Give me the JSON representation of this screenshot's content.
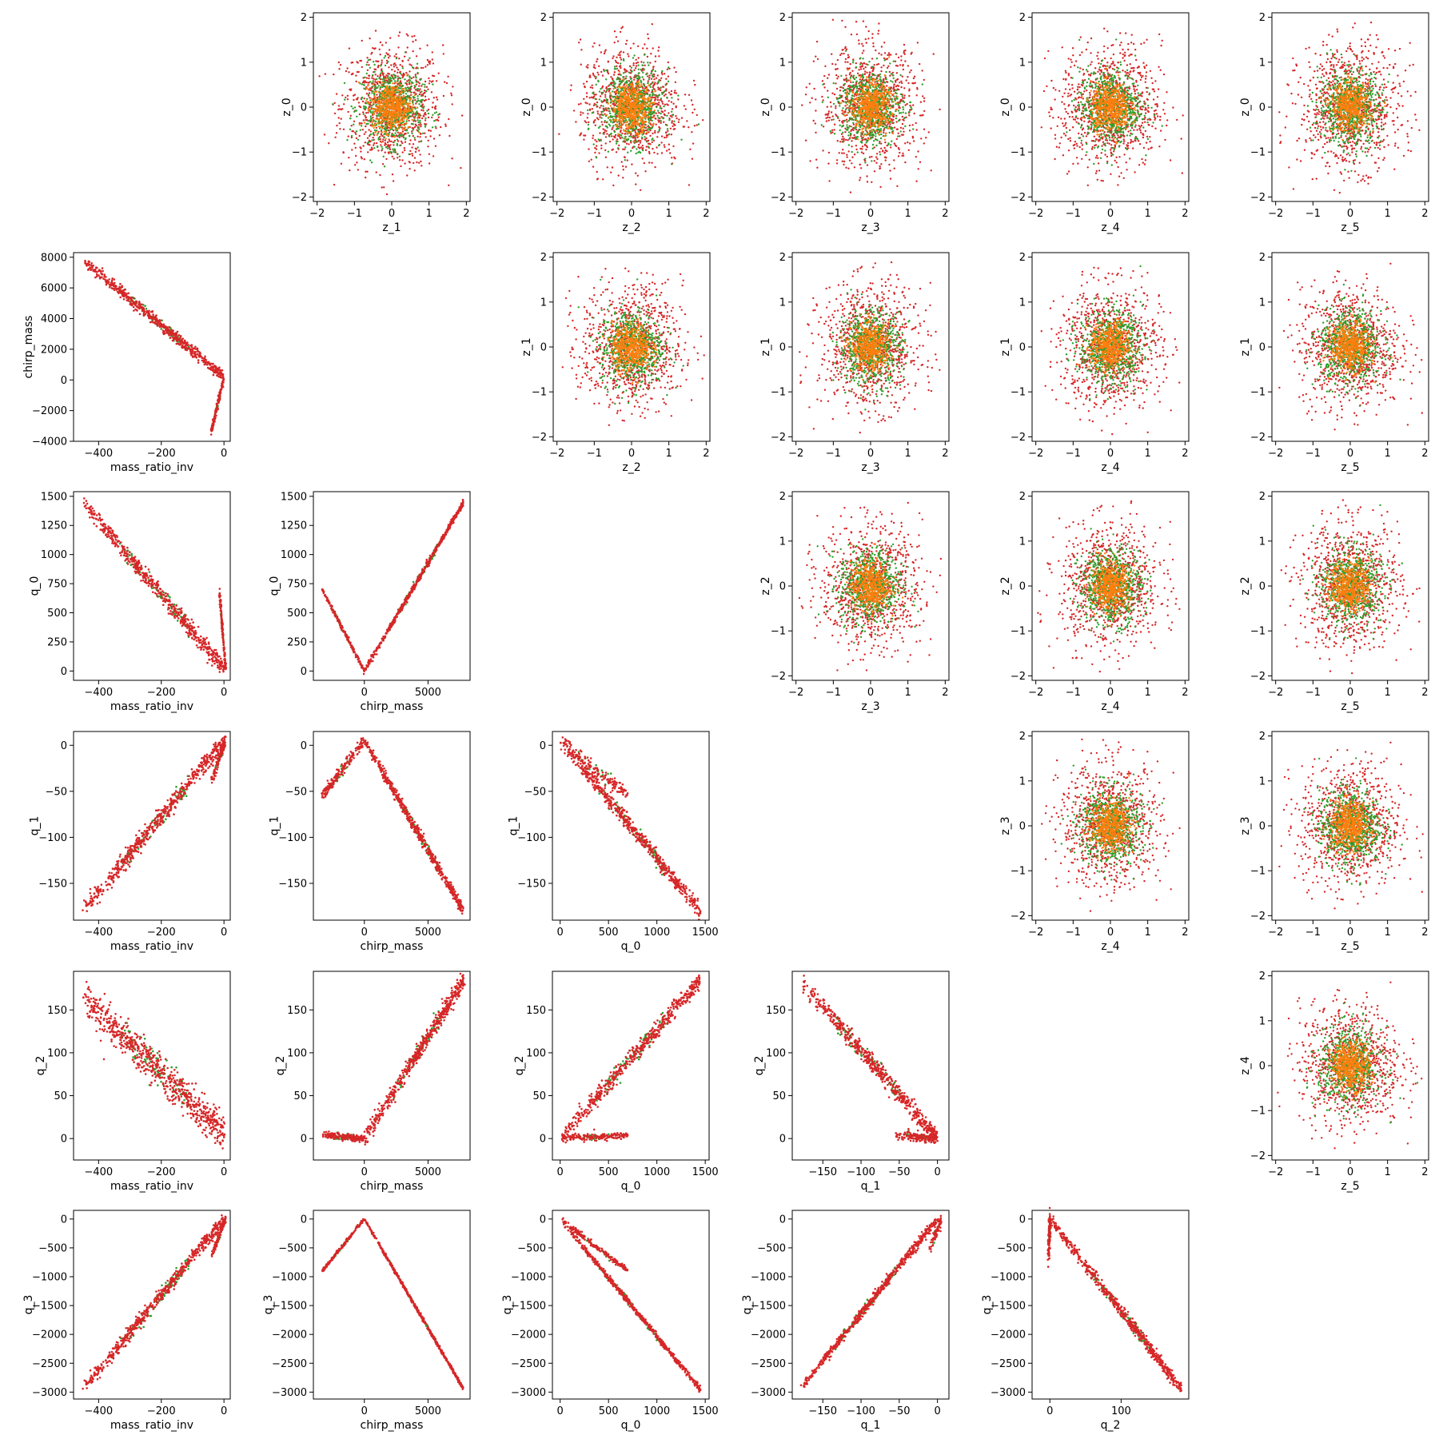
{
  "chart_data": {
    "type": "scatter",
    "grid": false,
    "colors": {
      "red": "#d62728",
      "green": "#2ca02c",
      "orange": "#ff7f0e"
    },
    "variables": {
      "z_0": {
        "label": "z_0",
        "ticks": [
          -2,
          -1,
          0,
          1,
          2
        ],
        "range": [
          -2.1,
          2.1
        ]
      },
      "z_1": {
        "label": "z_1",
        "ticks": [
          -2,
          -1,
          0,
          1,
          2
        ],
        "range": [
          -2.1,
          2.1
        ]
      },
      "z_2": {
        "label": "z_2",
        "ticks": [
          -2,
          -1,
          0,
          1,
          2
        ],
        "range": [
          -2.1,
          2.1
        ]
      },
      "z_3": {
        "label": "z_3",
        "ticks": [
          -2,
          -1,
          0,
          1,
          2
        ],
        "range": [
          -2.1,
          2.1
        ]
      },
      "z_4": {
        "label": "z_4",
        "ticks": [
          -2,
          -1,
          0,
          1,
          2
        ],
        "range": [
          -2.1,
          2.1
        ]
      },
      "z_5": {
        "label": "z_5",
        "ticks": [
          -2,
          -1,
          0,
          1,
          2
        ],
        "range": [
          -2.1,
          2.1
        ]
      },
      "mass_ratio_inv": {
        "label": "mass_ratio_inv",
        "ticks": [
          -400,
          -200,
          0
        ],
        "range": [
          -480,
          20
        ]
      },
      "chirp_mass": {
        "label": "chirp_mass",
        "ticks": [
          -4000,
          -2000,
          0,
          2000,
          4000,
          6000,
          8000
        ],
        "ticks_x": [
          0,
          5000
        ],
        "range": [
          -4000,
          8300
        ],
        "range_x": [
          -4000,
          8300
        ]
      },
      "q_0": {
        "label": "q_0",
        "ticks": [
          0,
          250,
          500,
          750,
          1000,
          1250,
          1500
        ],
        "ticks_x": [
          0,
          500,
          1000,
          1500
        ],
        "range": [
          -80,
          1540
        ]
      },
      "q_1": {
        "label": "q_1",
        "ticks": [
          -150,
          -100,
          -50,
          0
        ],
        "range": [
          -190,
          15
        ]
      },
      "q_2": {
        "label": "q_2",
        "ticks": [
          0,
          50,
          100,
          150
        ],
        "ticks_x": [
          0,
          100
        ],
        "range": [
          -25,
          195
        ]
      },
      "q_3": {
        "label": "q_3",
        "ticks": [
          -3000,
          -2500,
          -2000,
          -1500,
          -1000,
          -500,
          0
        ],
        "range": [
          -3120,
          150
        ]
      }
    },
    "panels": [
      {
        "x": "z_1",
        "y": "z_0",
        "kind": "cloud"
      },
      {
        "x": "z_2",
        "y": "z_0",
        "kind": "cloud"
      },
      {
        "x": "z_3",
        "y": "z_0",
        "kind": "cloud"
      },
      {
        "x": "z_4",
        "y": "z_0",
        "kind": "cloud"
      },
      {
        "x": "z_5",
        "y": "z_0",
        "kind": "cloud"
      },
      {
        "x": "mass_ratio_inv",
        "y": "chirp_mass",
        "kind": "trend",
        "segments": [
          {
            "from": [
              -450,
              7800
            ],
            "to": [
              0,
              200
            ],
            "weight": 0.8,
            "spread": 180
          },
          {
            "from": [
              0,
              200
            ],
            "to": [
              -40,
              -3300
            ],
            "weight": 0.2,
            "spread": 120
          }
        ]
      },
      {
        "x": "z_2",
        "y": "z_1",
        "kind": "cloud"
      },
      {
        "x": "z_3",
        "y": "z_1",
        "kind": "cloud"
      },
      {
        "x": "z_4",
        "y": "z_1",
        "kind": "cloud"
      },
      {
        "x": "z_5",
        "y": "z_1",
        "kind": "cloud"
      },
      {
        "x": "mass_ratio_inv",
        "y": "q_0",
        "kind": "trend",
        "segments": [
          {
            "from": [
              -450,
              1450
            ],
            "to": [
              0,
              20
            ],
            "weight": 0.8,
            "spread": 35
          },
          {
            "from": [
              -15,
              700
            ],
            "to": [
              5,
              20
            ],
            "weight": 0.2,
            "spread": 20
          }
        ]
      },
      {
        "x": "chirp_mass",
        "y": "q_0",
        "kind": "trend",
        "segments": [
          {
            "from": [
              0,
              0
            ],
            "to": [
              7800,
              1450
            ],
            "weight": 0.75,
            "spread": 12
          },
          {
            "from": [
              0,
              0
            ],
            "to": [
              -3300,
              700
            ],
            "weight": 0.25,
            "spread": 10
          }
        ]
      },
      {
        "x": "z_3",
        "y": "z_2",
        "kind": "cloud"
      },
      {
        "x": "z_4",
        "y": "z_2",
        "kind": "cloud"
      },
      {
        "x": "z_5",
        "y": "z_2",
        "kind": "cloud"
      },
      {
        "x": "mass_ratio_inv",
        "y": "q_1",
        "kind": "trend",
        "segments": [
          {
            "from": [
              -450,
              -180
            ],
            "to": [
              0,
              5
            ],
            "weight": 0.85,
            "spread": 5
          },
          {
            "from": [
              -40,
              -40
            ],
            "to": [
              5,
              5
            ],
            "weight": 0.15,
            "spread": 3
          }
        ]
      },
      {
        "x": "chirp_mass",
        "y": "q_1",
        "kind": "trend",
        "segments": [
          {
            "from": [
              0,
              5
            ],
            "to": [
              7800,
              -180
            ],
            "weight": 0.75,
            "spread": 3
          },
          {
            "from": [
              0,
              5
            ],
            "to": [
              -3300,
              -55
            ],
            "weight": 0.25,
            "spread": 3
          }
        ]
      },
      {
        "x": "q_0",
        "y": "q_1",
        "kind": "trend",
        "segments": [
          {
            "from": [
              0,
              5
            ],
            "to": [
              1450,
              -180
            ],
            "weight": 0.8,
            "spread": 4
          },
          {
            "from": [
              0,
              5
            ],
            "to": [
              700,
              -55
            ],
            "weight": 0.2,
            "spread": 4
          }
        ]
      },
      {
        "x": "z_4",
        "y": "z_3",
        "kind": "cloud"
      },
      {
        "x": "z_5",
        "y": "z_3",
        "kind": "cloud"
      },
      {
        "x": "mass_ratio_inv",
        "y": "q_2",
        "kind": "trend",
        "segments": [
          {
            "from": [
              -450,
              165
            ],
            "to": [
              0,
              5
            ],
            "weight": 1.0,
            "spread": 10
          }
        ]
      },
      {
        "x": "chirp_mass",
        "y": "q_2",
        "kind": "trend",
        "segments": [
          {
            "from": [
              0,
              0
            ],
            "to": [
              7800,
              185
            ],
            "weight": 0.75,
            "spread": 5
          },
          {
            "from": [
              -3300,
              4
            ],
            "to": [
              0,
              0
            ],
            "weight": 0.25,
            "spread": 2
          }
        ]
      },
      {
        "x": "q_0",
        "y": "q_2",
        "kind": "trend",
        "segments": [
          {
            "from": [
              0,
              0
            ],
            "to": [
              1450,
              185
            ],
            "weight": 0.75,
            "spread": 5
          },
          {
            "from": [
              0,
              0
            ],
            "to": [
              700,
              4
            ],
            "weight": 0.25,
            "spread": 2
          }
        ]
      },
      {
        "x": "q_1",
        "y": "q_2",
        "kind": "trend",
        "segments": [
          {
            "from": [
              -180,
              185
            ],
            "to": [
              0,
              0
            ],
            "weight": 0.8,
            "spread": 5
          },
          {
            "from": [
              -55,
              4
            ],
            "to": [
              0,
              0
            ],
            "weight": 0.2,
            "spread": 3
          }
        ]
      },
      {
        "x": "z_5",
        "y": "z_4",
        "kind": "cloud"
      },
      {
        "x": "mass_ratio_inv",
        "y": "q_3",
        "kind": "trend",
        "segments": [
          {
            "from": [
              -450,
              -2950
            ],
            "to": [
              0,
              0
            ],
            "weight": 0.85,
            "spread": 60
          },
          {
            "from": [
              -40,
              -650
            ],
            "to": [
              5,
              0
            ],
            "weight": 0.15,
            "spread": 30
          }
        ]
      },
      {
        "x": "chirp_mass",
        "y": "q_3",
        "kind": "trend",
        "segments": [
          {
            "from": [
              0,
              0
            ],
            "to": [
              7800,
              -2950
            ],
            "weight": 0.75,
            "spread": 15
          },
          {
            "from": [
              0,
              0
            ],
            "to": [
              -3300,
              -900
            ],
            "weight": 0.25,
            "spread": 15
          }
        ]
      },
      {
        "x": "q_0",
        "y": "q_3",
        "kind": "trend",
        "segments": [
          {
            "from": [
              0,
              0
            ],
            "to": [
              1450,
              -2950
            ],
            "weight": 0.75,
            "spread": 25
          },
          {
            "from": [
              0,
              0
            ],
            "to": [
              700,
              -900
            ],
            "weight": 0.25,
            "spread": 25
          }
        ]
      },
      {
        "x": "q_1",
        "y": "q_3",
        "kind": "trend",
        "segments": [
          {
            "from": [
              -180,
              -2950
            ],
            "to": [
              0,
              0
            ],
            "weight": 0.9,
            "spread": 40
          },
          {
            "from": [
              -10,
              -500
            ],
            "to": [
              5,
              0
            ],
            "weight": 0.1,
            "spread": 60
          }
        ]
      },
      {
        "x": "q_2",
        "y": "q_3",
        "kind": "trend",
        "segments": [
          {
            "from": [
              0,
              0
            ],
            "to": [
              185,
              -2950
            ],
            "weight": 0.85,
            "spread": 50
          },
          {
            "from": [
              -2,
              -700
            ],
            "to": [
              0,
              0
            ],
            "weight": 0.15,
            "spread": 80
          }
        ]
      }
    ]
  }
}
